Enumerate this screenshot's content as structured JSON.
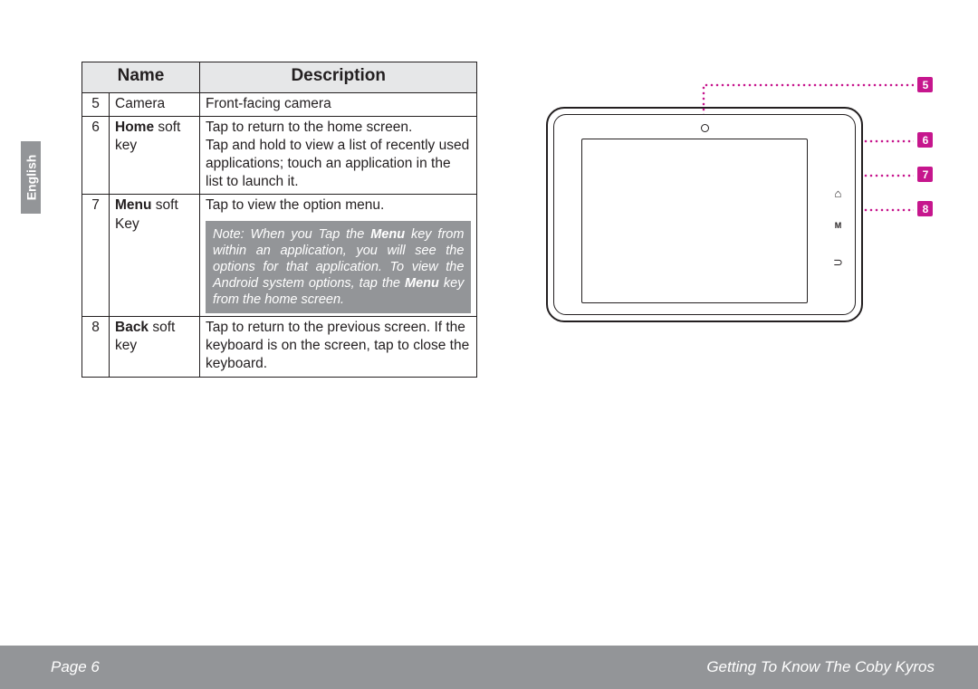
{
  "language_tab": "English",
  "table": {
    "headers": {
      "name": "Name",
      "description": "Description"
    },
    "rows": [
      {
        "num": "5",
        "name_plain": "Camera",
        "desc_lines": [
          "Front-facing camera"
        ]
      },
      {
        "num": "6",
        "name_bold": "Home",
        "name_rest": " soft key",
        "desc_lines": [
          "Tap to return to the home screen.",
          "Tap and hold to view a list of recently used applications; touch an application in the list to launch it."
        ]
      },
      {
        "num": "7",
        "name_bold": "Menu",
        "name_rest": " soft Key",
        "desc_lines": [
          "Tap to view the option menu."
        ],
        "note_before": "Note: When you Tap the ",
        "note_b1": "Menu",
        "note_mid": " key from within an application, you will see the options for that application. To view the Android system options, tap the ",
        "note_b2": "Menu",
        "note_after": " key from the home screen."
      },
      {
        "num": "8",
        "name_bold": "Back",
        "name_rest": " soft key",
        "desc_lines": [
          "Tap to return to the previous screen. If the keyboard is on the screen, tap to close the keyboard."
        ]
      }
    ]
  },
  "diagram": {
    "callouts": {
      "c5": "5",
      "c6": "6",
      "c7": "7",
      "c8": "8"
    },
    "softkeys": {
      "home": "⌂",
      "menu": "M",
      "back": "⊃"
    },
    "accent_color": "#c6168d"
  },
  "footer": {
    "left": "Page 6",
    "right": "Getting To Know The Coby Kyros"
  }
}
